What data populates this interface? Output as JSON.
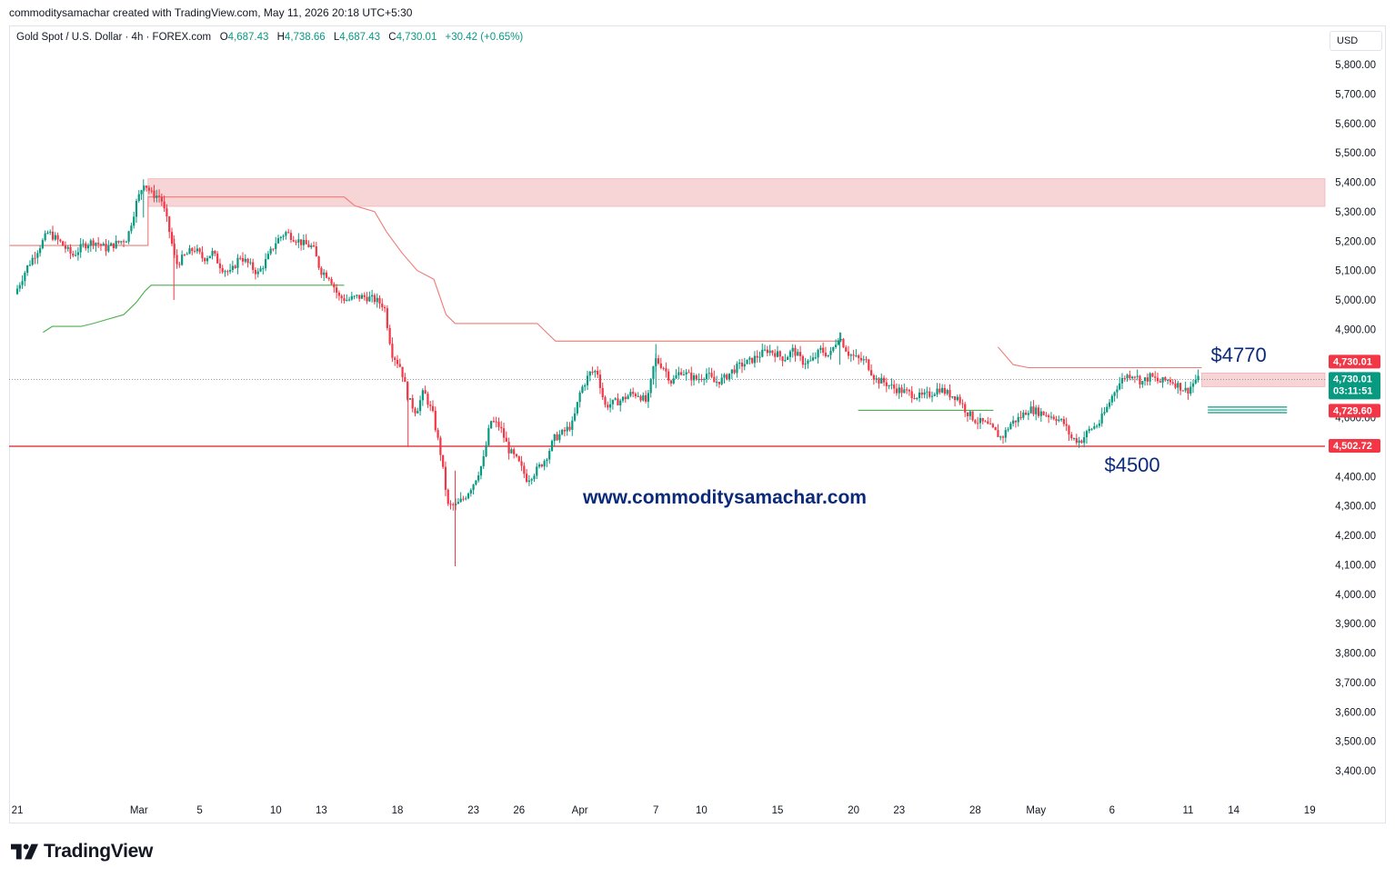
{
  "header": {
    "credit": "commoditysamachar created with TradingView.com, May 11, 2026 20:18 UTC+5:30"
  },
  "legend": {
    "symbol": "Gold Spot / U.S. Dollar · 4h · FOREX.com",
    "open_label": "O",
    "open": "4,687.43",
    "high_label": "H",
    "high": "4,738.66",
    "low_label": "L",
    "low": "4,687.43",
    "close_label": "C",
    "close": "4,730.01",
    "change": "+30.42 (+0.65%)"
  },
  "currency": "USD",
  "brand": {
    "name": "TradingView",
    "icon": "tradingview-logo-icon"
  },
  "colors": {
    "up": "#089981",
    "down": "#f23645",
    "zone": "#f4c7ca",
    "resistance": "#f07a76",
    "support": "#4caf50",
    "level": "#e0434f",
    "annotation": "#0c2a7a"
  },
  "chart_data": {
    "type": "candlestick",
    "ylim": [
      3350,
      5900
    ],
    "yticks": [
      "5,800.00",
      "5,700.00",
      "5,600.00",
      "5,500.00",
      "5,400.00",
      "5,300.00",
      "5,200.00",
      "5,100.00",
      "5,000.00",
      "4,900.00",
      "4,800.00",
      "4,700.00",
      "4,600.00",
      "4,500.00",
      "4,400.00",
      "4,300.00",
      "4,200.00",
      "4,100.00",
      "4,000.00",
      "3,900.00",
      "3,800.00",
      "3,700.00",
      "3,600.00",
      "3,500.00",
      "3,400.00"
    ],
    "ytick_values": [
      5800,
      5700,
      5600,
      5500,
      5400,
      5300,
      5200,
      5100,
      5000,
      4900,
      4800,
      4700,
      4600,
      4500,
      4400,
      4300,
      4200,
      4100,
      4000,
      3900,
      3800,
      3700,
      3600,
      3500,
      3400
    ],
    "xticks": [
      "21",
      "Mar",
      "5",
      "10",
      "13",
      "18",
      "23",
      "26",
      "Apr",
      "7",
      "10",
      "15",
      "20",
      "23",
      "28",
      "May",
      "6",
      "11",
      "14",
      "19"
    ],
    "xtick_days": [
      0,
      8,
      12,
      17,
      20,
      25,
      30,
      33,
      37,
      42,
      45,
      50,
      55,
      58,
      63,
      67,
      72,
      77,
      80,
      85
    ],
    "day_range": [
      0,
      86.5
    ],
    "price_path": [
      [
        0.0,
        5020
      ],
      [
        0.8,
        5110
      ],
      [
        1.5,
        5170
      ],
      [
        2.2,
        5230
      ],
      [
        3.0,
        5195
      ],
      [
        3.8,
        5150
      ],
      [
        4.5,
        5185
      ],
      [
        5.2,
        5200
      ],
      [
        6.0,
        5175
      ],
      [
        6.8,
        5195
      ],
      [
        7.4,
        5210
      ],
      [
        8.0,
        5330
      ],
      [
        8.5,
        5400
      ],
      [
        9.0,
        5360
      ],
      [
        9.6,
        5350
      ],
      [
        10.1,
        5250
      ],
      [
        10.6,
        5120
      ],
      [
        11.2,
        5150
      ],
      [
        11.8,
        5175
      ],
      [
        12.4,
        5140
      ],
      [
        13.0,
        5160
      ],
      [
        13.6,
        5110
      ],
      [
        14.2,
        5090
      ],
      [
        14.8,
        5150
      ],
      [
        15.4,
        5120
      ],
      [
        16.0,
        5090
      ],
      [
        16.6,
        5140
      ],
      [
        17.2,
        5200
      ],
      [
        17.8,
        5230
      ],
      [
        18.4,
        5210
      ],
      [
        19.0,
        5190
      ],
      [
        19.6,
        5180
      ],
      [
        20.1,
        5100
      ],
      [
        20.7,
        5080
      ],
      [
        21.3,
        5010
      ],
      [
        21.9,
        5000
      ],
      [
        22.5,
        5010
      ],
      [
        23.1,
        5010
      ],
      [
        23.7,
        5000
      ],
      [
        24.3,
        4980
      ],
      [
        24.8,
        4820
      ],
      [
        25.4,
        4770
      ],
      [
        25.9,
        4660
      ],
      [
        26.4,
        4620
      ],
      [
        26.9,
        4690
      ],
      [
        27.5,
        4610
      ],
      [
        28.0,
        4480
      ],
      [
        28.5,
        4300
      ],
      [
        29.0,
        4300
      ],
      [
        29.6,
        4330
      ],
      [
        30.2,
        4380
      ],
      [
        30.8,
        4450
      ],
      [
        31.3,
        4590
      ],
      [
        31.9,
        4570
      ],
      [
        32.5,
        4490
      ],
      [
        33.1,
        4450
      ],
      [
        33.7,
        4390
      ],
      [
        34.3,
        4420
      ],
      [
        34.9,
        4460
      ],
      [
        35.5,
        4530
      ],
      [
        36.1,
        4550
      ],
      [
        36.7,
        4580
      ],
      [
        37.2,
        4690
      ],
      [
        37.8,
        4750
      ],
      [
        38.3,
        4760
      ],
      [
        38.8,
        4640
      ],
      [
        39.4,
        4650
      ],
      [
        39.9,
        4660
      ],
      [
        40.5,
        4680
      ],
      [
        41.0,
        4680
      ],
      [
        41.6,
        4650
      ],
      [
        42.1,
        4800
      ],
      [
        42.7,
        4770
      ],
      [
        43.2,
        4720
      ],
      [
        43.8,
        4760
      ],
      [
        44.4,
        4740
      ],
      [
        44.9,
        4730
      ],
      [
        45.5,
        4750
      ],
      [
        46.0,
        4720
      ],
      [
        46.6,
        4730
      ],
      [
        47.2,
        4760
      ],
      [
        47.8,
        4780
      ],
      [
        48.3,
        4790
      ],
      [
        48.9,
        4810
      ],
      [
        49.5,
        4830
      ],
      [
        50.0,
        4820
      ],
      [
        50.6,
        4800
      ],
      [
        51.2,
        4830
      ],
      [
        51.8,
        4790
      ],
      [
        52.4,
        4790
      ],
      [
        53.0,
        4830
      ],
      [
        53.6,
        4810
      ],
      [
        54.2,
        4880
      ],
      [
        54.8,
        4820
      ],
      [
        55.4,
        4800
      ],
      [
        56.0,
        4790
      ],
      [
        56.6,
        4730
      ],
      [
        57.2,
        4720
      ],
      [
        57.8,
        4700
      ],
      [
        58.4,
        4690
      ],
      [
        59.0,
        4680
      ],
      [
        59.6,
        4670
      ],
      [
        60.2,
        4680
      ],
      [
        60.8,
        4700
      ],
      [
        61.4,
        4680
      ],
      [
        62.0,
        4670
      ],
      [
        62.6,
        4620
      ],
      [
        63.2,
        4590
      ],
      [
        63.8,
        4580
      ],
      [
        64.3,
        4560
      ],
      [
        64.9,
        4530
      ],
      [
        65.5,
        4580
      ],
      [
        66.1,
        4600
      ],
      [
        66.7,
        4630
      ],
      [
        67.3,
        4620
      ],
      [
        67.9,
        4610
      ],
      [
        68.5,
        4600
      ],
      [
        69.0,
        4580
      ],
      [
        69.5,
        4530
      ],
      [
        70.1,
        4520
      ],
      [
        70.7,
        4560
      ],
      [
        71.3,
        4580
      ],
      [
        71.8,
        4630
      ],
      [
        72.4,
        4700
      ],
      [
        73.0,
        4740
      ],
      [
        73.6,
        4750
      ],
      [
        74.1,
        4720
      ],
      [
        74.7,
        4740
      ],
      [
        75.3,
        4720
      ],
      [
        75.9,
        4730
      ],
      [
        76.5,
        4710
      ],
      [
        77.1,
        4690
      ],
      [
        77.7,
        4730
      ]
    ],
    "last_day": 77.7,
    "horizontal_levels": [
      {
        "price": 4502.72,
        "label": "4,502.72",
        "style": "solid"
      }
    ],
    "current_price": {
      "price": 4730.01,
      "label": "4,730.01",
      "countdown": "03:11:51",
      "bid_label": "4,729.60",
      "ask_label": "4,730.01"
    },
    "zones": [
      {
        "day_from": 8.6,
        "day_to": 86.5,
        "price_low": 5318,
        "price_high": 5412
      },
      {
        "day_from": 77.9,
        "day_to": 86.5,
        "price_low": 4705,
        "price_high": 4752
      }
    ],
    "resistance_steps": [
      [
        -0.5,
        5185
      ],
      [
        1.5,
        5185
      ],
      [
        8.6,
        5185
      ],
      [
        8.6,
        5350
      ],
      [
        10.0,
        5350
      ],
      [
        13.0,
        5350
      ],
      [
        21.5,
        5350
      ],
      [
        22.2,
        5320
      ],
      [
        23.5,
        5300
      ],
      [
        24.3,
        5230
      ],
      [
        25.3,
        5160
      ],
      [
        26.3,
        5100
      ],
      [
        27.4,
        5070
      ],
      [
        28.2,
        4950
      ],
      [
        28.8,
        4920
      ],
      [
        34.2,
        4920
      ],
      [
        35.2,
        4870
      ],
      [
        35.4,
        4860
      ],
      [
        54.2,
        4860
      ]
    ],
    "resistance_steps_2": [
      [
        64.5,
        4840
      ],
      [
        65.5,
        4780
      ],
      [
        66.5,
        4770
      ],
      [
        77.9,
        4770
      ]
    ],
    "support_steps": [
      [
        1.7,
        4890
      ],
      [
        2.3,
        4910
      ],
      [
        4.2,
        4910
      ],
      [
        5.0,
        4920
      ],
      [
        6.0,
        4935
      ],
      [
        7.0,
        4950
      ],
      [
        7.8,
        4990
      ],
      [
        8.4,
        5030
      ],
      [
        8.8,
        5050
      ],
      [
        21.5,
        5050
      ]
    ],
    "support_steps_2": [
      [
        55.3,
        4625
      ],
      [
        64.2,
        4625
      ]
    ],
    "bid_ask_lines": [
      [
        78.3,
        4636
      ],
      [
        78.3,
        4626
      ],
      [
        78.3,
        4617
      ]
    ],
    "bid_ask_end_day": 86.5,
    "annotations": [
      {
        "text": "$4770",
        "day": 78.5,
        "price": 4790
      },
      {
        "text": "$4500",
        "day": 71.5,
        "price": 4416
      },
      {
        "text": "www.commoditysamachar.com",
        "day": 37.2,
        "price": 4308
      }
    ]
  }
}
